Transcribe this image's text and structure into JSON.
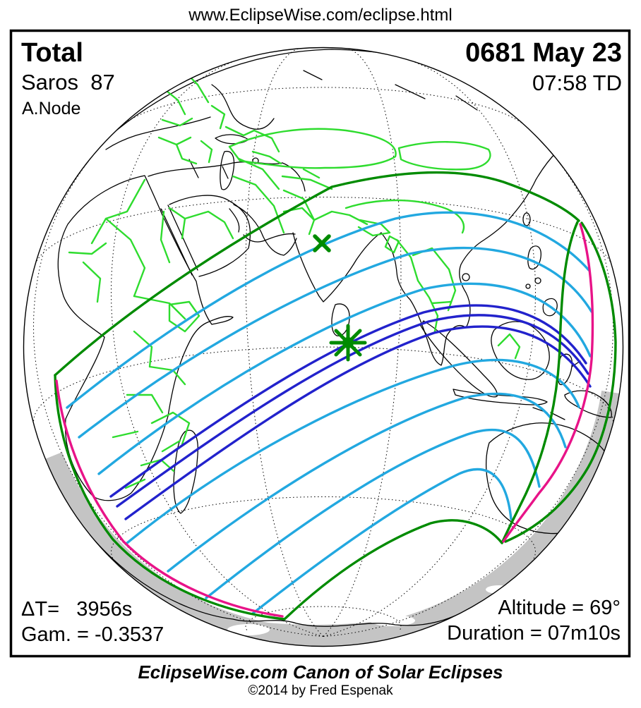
{
  "page": {
    "url": "www.EclipseWise.com/eclipse.html"
  },
  "eclipse": {
    "type": "Total",
    "saros": "Saros  87",
    "node": "A.Node",
    "date": "0681 May 23",
    "time": "07:58 TD",
    "delta_t": "ΔT=   3956s",
    "gamma": "Gam. = -0.3537",
    "altitude": "Altitude = 69°",
    "duration": "Duration = 07m10s"
  },
  "footer": {
    "title": "EclipseWise.com Canon of Solar Eclipses",
    "copyright": "©2014 by Fred Espenak"
  },
  "map": {
    "projection": "orthographic-globe",
    "colors": {
      "coastline": "#000000",
      "country_border": "#2edc2e",
      "penumbra_limit_green": "#008b00",
      "magnitude_contour_cyan": "#22a8e0",
      "umbral_path_blue": "#2222cc",
      "sunrise_sunset_magenta": "#e81388",
      "night_shading_gray": "#c4c4c4"
    },
    "markers": {
      "greatest_eclipse": {
        "symbol": "asterisk",
        "color": "#008b00"
      },
      "zenith_point": {
        "symbol": "x-cross",
        "color": "#008b00"
      }
    }
  }
}
